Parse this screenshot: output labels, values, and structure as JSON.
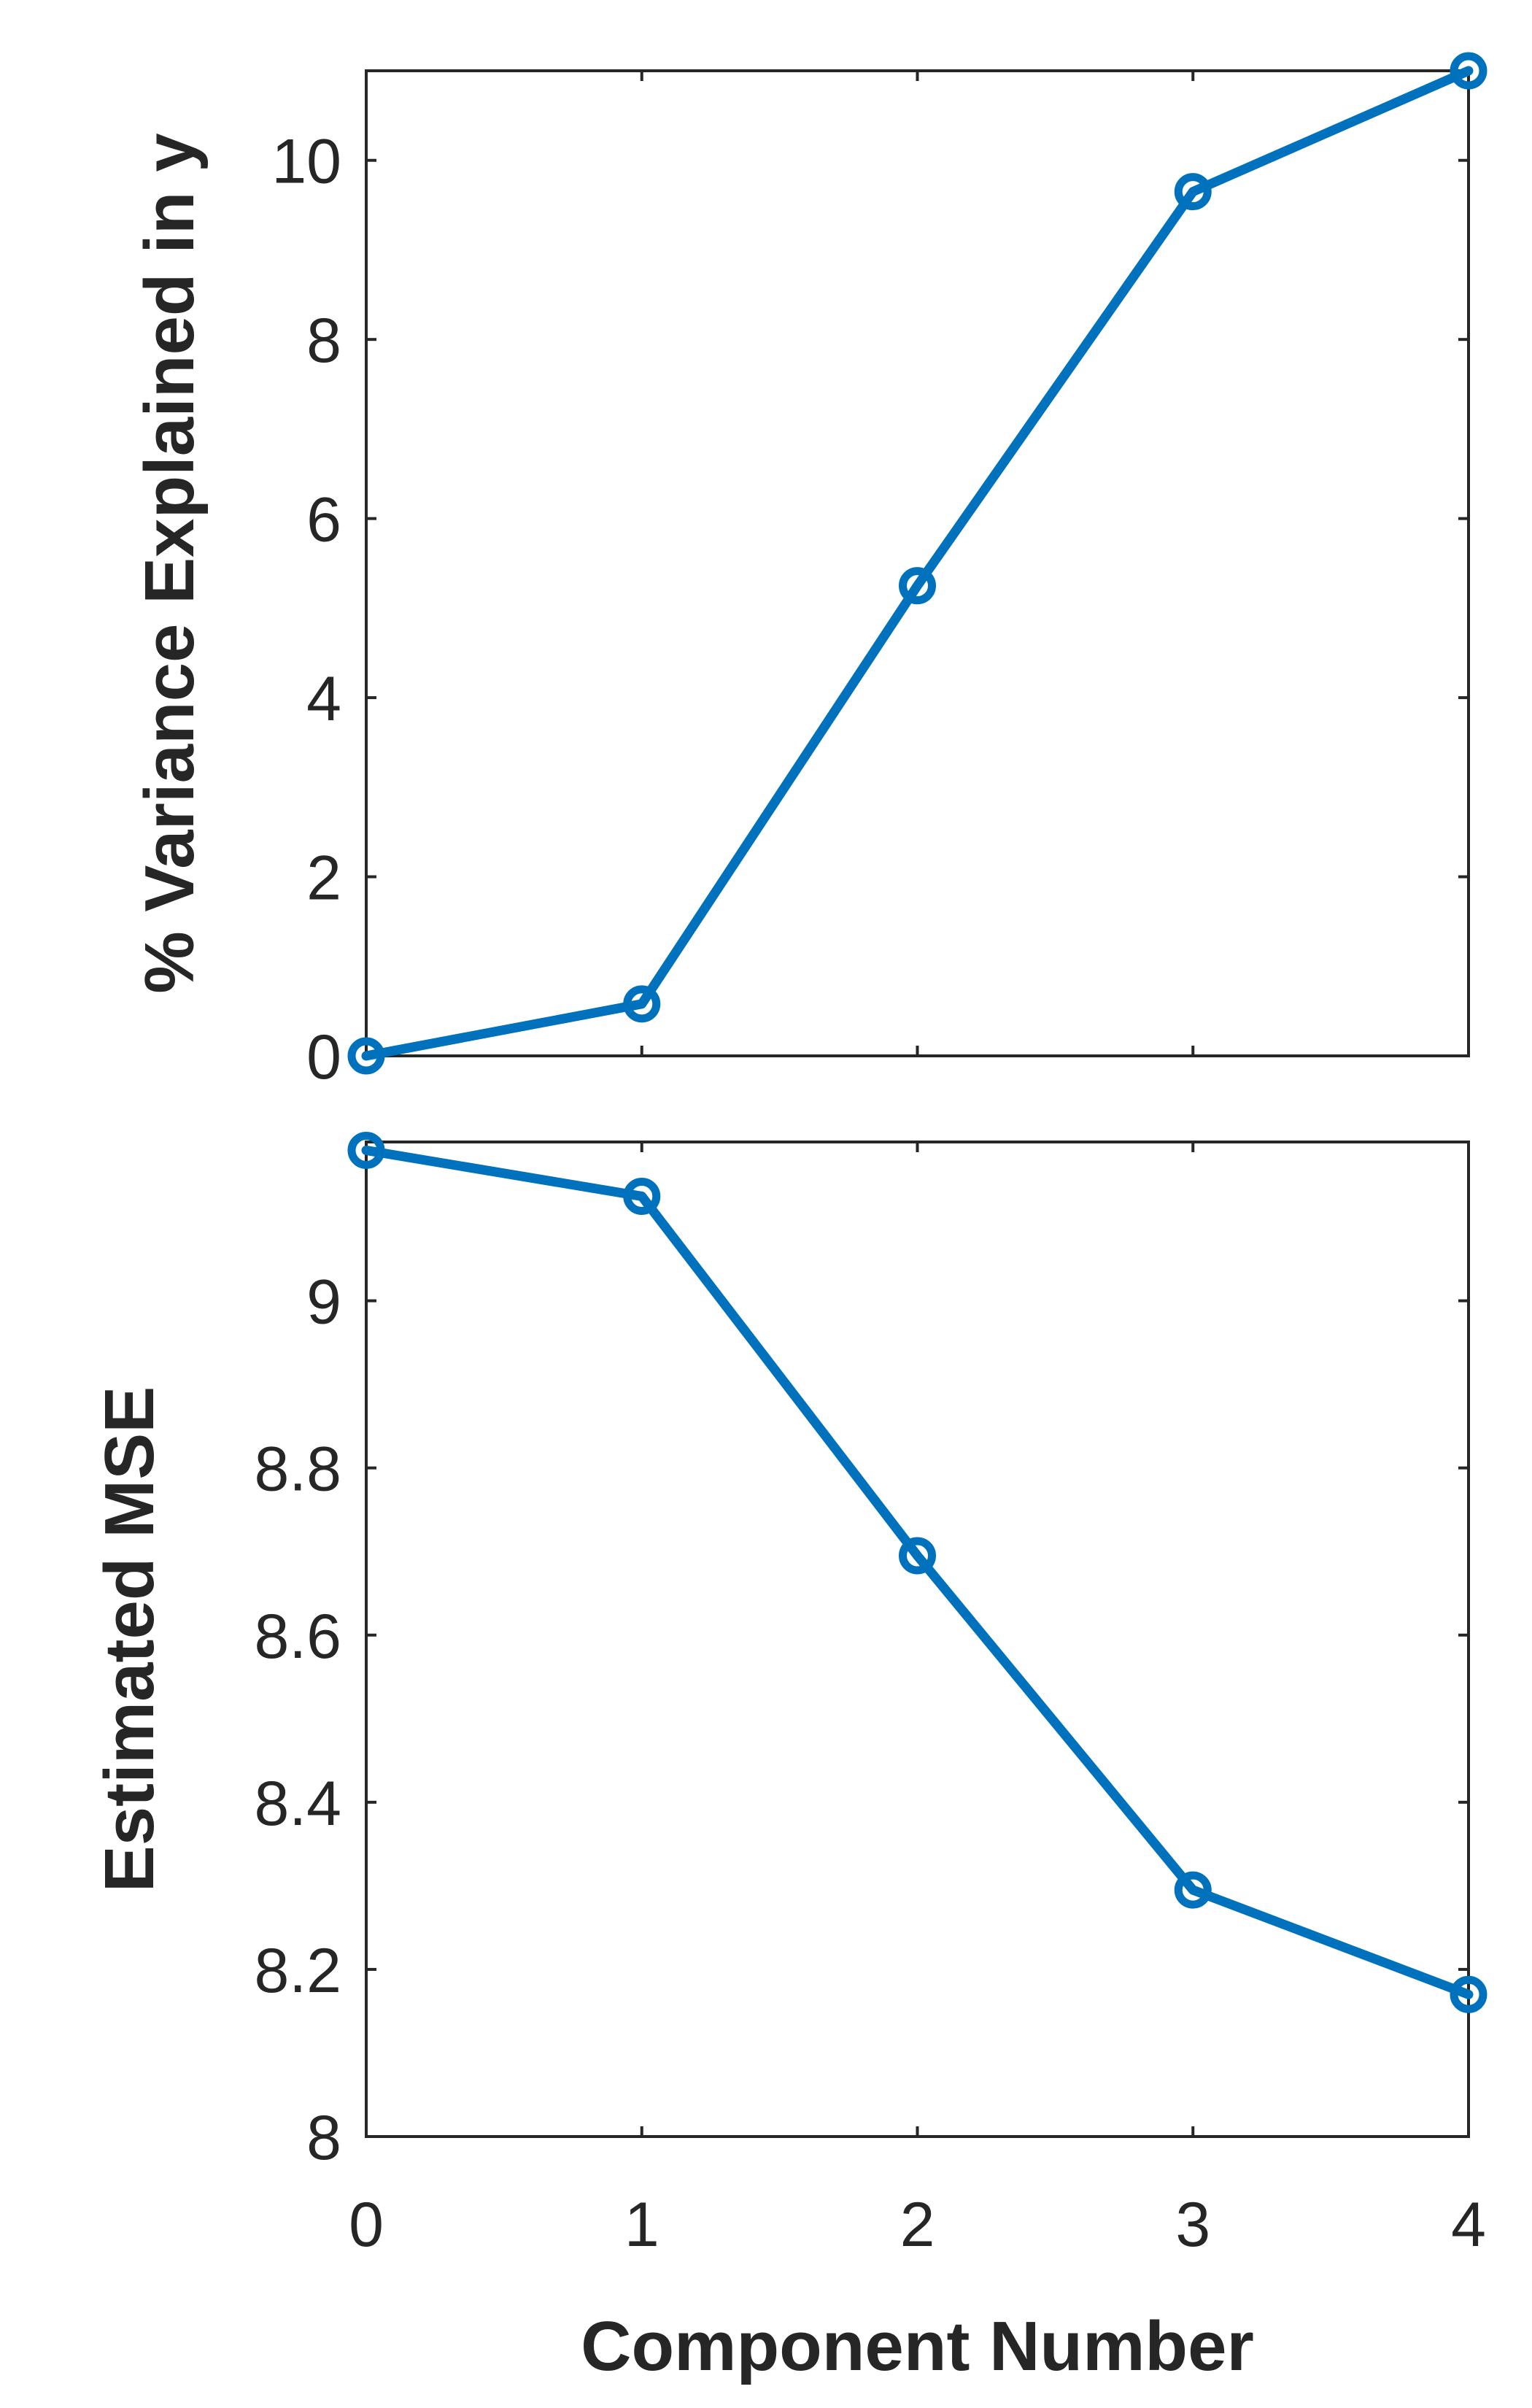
{
  "chart_data": [
    {
      "type": "line",
      "x": [
        0,
        1,
        2,
        3,
        4
      ],
      "xlim": [
        0,
        4
      ],
      "xticks": [
        "0",
        "1",
        "2",
        "3",
        "4"
      ],
      "xlabel": "",
      "ylabel": "% Variance Explained in y",
      "ylim": [
        0,
        11
      ],
      "yticks": [
        "0",
        "2",
        "4",
        "6",
        "8",
        "10"
      ],
      "ytick_values": [
        0,
        2,
        4,
        6,
        8,
        10
      ],
      "grid": false,
      "series": [
        {
          "values": [
            0.0,
            0.58,
            5.25,
            9.65,
            11.0
          ],
          "color": "#0072BD",
          "marker": "circle"
        }
      ]
    },
    {
      "type": "line",
      "x": [
        0,
        1,
        2,
        3,
        4
      ],
      "xlim": [
        0,
        4
      ],
      "xticks": [
        "0",
        "1",
        "2",
        "3",
        "4"
      ],
      "xlabel": "Component Number",
      "ylabel": "Estimated MSE",
      "ylim": [
        8,
        9.19
      ],
      "yticks": [
        "8",
        "8.2",
        "8.4",
        "8.6",
        "8.8",
        "9"
      ],
      "ytick_values": [
        8,
        8.2,
        8.4,
        8.6,
        8.8,
        9
      ],
      "grid": false,
      "series": [
        {
          "values": [
            9.18,
            9.125,
            8.695,
            8.295,
            8.17
          ],
          "color": "#0072BD",
          "marker": "circle"
        }
      ]
    }
  ]
}
